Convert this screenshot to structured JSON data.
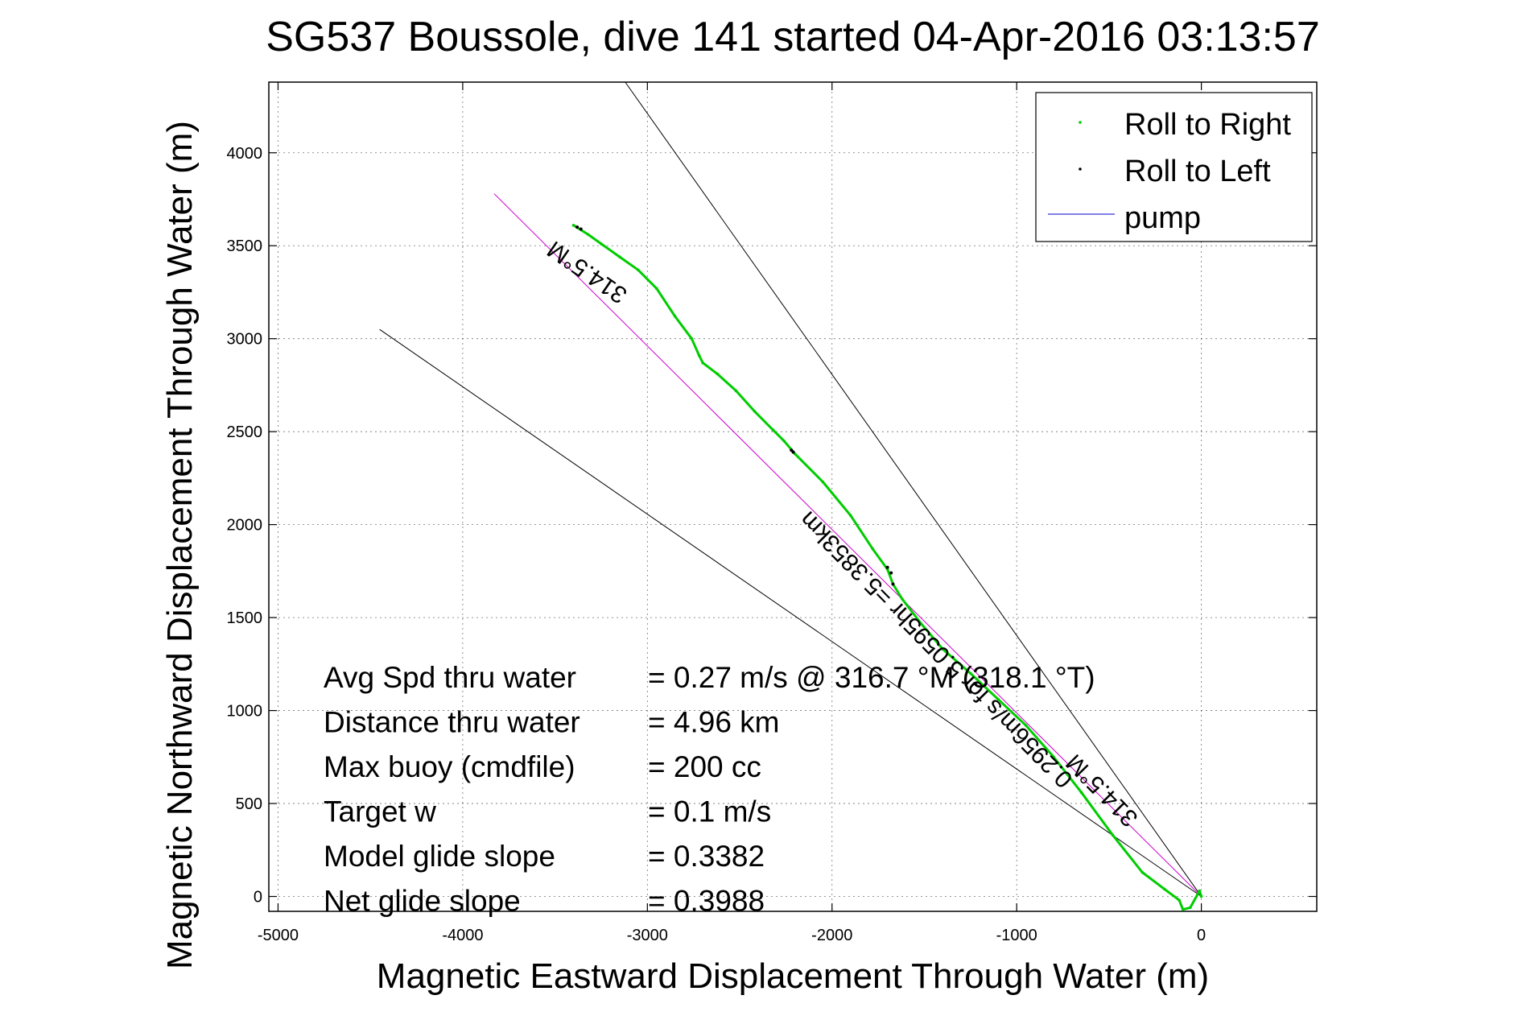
{
  "chart_data": {
    "type": "line",
    "title": "SG537 Boussole, dive 141 started 04-Apr-2016 03:13:57",
    "xlabel": "Magnetic Eastward Displacement Through Water (m)",
    "ylabel": "Magnetic Northward Displacement Through Water (m)",
    "xlim": [
      -5050,
      625
    ],
    "ylim": [
      -80,
      4380
    ],
    "xticks": [
      -5000,
      -4000,
      -3000,
      -2000,
      -1000,
      0
    ],
    "yticks": [
      0,
      500,
      1000,
      1500,
      2000,
      2500,
      3000,
      3500,
      4000
    ],
    "grid": true,
    "legend_position": "top-right",
    "series": [
      {
        "name": "Roll to Right",
        "color": "#00cc00",
        "marker": "dot",
        "points": [
          [
            0,
            0
          ],
          [
            -10,
            30
          ],
          [
            -60,
            -60
          ],
          [
            -100,
            -70
          ],
          [
            -120,
            -20
          ],
          [
            -200,
            40
          ],
          [
            -320,
            130
          ],
          [
            -480,
            330
          ],
          [
            -650,
            560
          ],
          [
            -800,
            750
          ],
          [
            -950,
            920
          ],
          [
            -1100,
            1060
          ],
          [
            -1250,
            1200
          ],
          [
            -1400,
            1330
          ],
          [
            -1520,
            1470
          ],
          [
            -1620,
            1600
          ],
          [
            -1670,
            1680
          ],
          [
            -1700,
            1760
          ],
          [
            -1780,
            1870
          ],
          [
            -1900,
            2050
          ],
          [
            -2050,
            2230
          ],
          [
            -2200,
            2380
          ],
          [
            -2260,
            2450
          ],
          [
            -2320,
            2510
          ],
          [
            -2420,
            2610
          ],
          [
            -2520,
            2720
          ],
          [
            -2620,
            2810
          ],
          [
            -2700,
            2870
          ],
          [
            -2720,
            2910
          ],
          [
            -2760,
            3000
          ],
          [
            -2850,
            3120
          ],
          [
            -2950,
            3270
          ],
          [
            -3050,
            3370
          ],
          [
            -3150,
            3440
          ],
          [
            -3250,
            3510
          ],
          [
            -3320,
            3560
          ],
          [
            -3400,
            3610
          ]
        ]
      },
      {
        "name": "Roll to Left",
        "color": "#000000",
        "marker": "dot",
        "points": [
          [
            -1670,
            1680
          ],
          [
            -1680,
            1740
          ],
          [
            -1700,
            1770
          ],
          [
            -2210,
            2390
          ],
          [
            -2220,
            2400
          ],
          [
            -3360,
            3590
          ],
          [
            -3380,
            3600
          ]
        ]
      },
      {
        "name": "pump",
        "color": "#0000cc",
        "marker": "none",
        "points": []
      }
    ],
    "reference_lines": [
      {
        "name": "heading-line",
        "color": "#cc00cc",
        "points": [
          [
            0,
            0
          ],
          [
            -3830,
            3780
          ]
        ]
      },
      {
        "name": "heading-bound-upper",
        "color": "#000000",
        "points": [
          [
            0,
            0
          ],
          [
            -3120,
            4380
          ]
        ]
      },
      {
        "name": "heading-bound-lower",
        "color": "#000000",
        "points": [
          [
            0,
            0
          ],
          [
            -4450,
            3050
          ]
        ]
      }
    ],
    "annotations": {
      "heading_label_top": "314.5°M",
      "heading_label_bottom": "314.5°M",
      "speed_label": "0.2956m/s for 5.0595hr =5.3853km"
    },
    "stats": [
      {
        "label": "Avg Spd thru water",
        "value": "=  0.27 m/s @ 316.7 °M (318.1 °T)"
      },
      {
        "label": "Distance thru water",
        "value": "=  4.96 km"
      },
      {
        "label": "Max buoy (cmdfile)",
        "value": "= 200 cc"
      },
      {
        "label": "Target w",
        "value": "= 0.1 m/s"
      },
      {
        "label": "Model glide slope",
        "value": "= 0.3382"
      },
      {
        "label": "Net glide slope",
        "value": "= 0.3988"
      }
    ]
  }
}
